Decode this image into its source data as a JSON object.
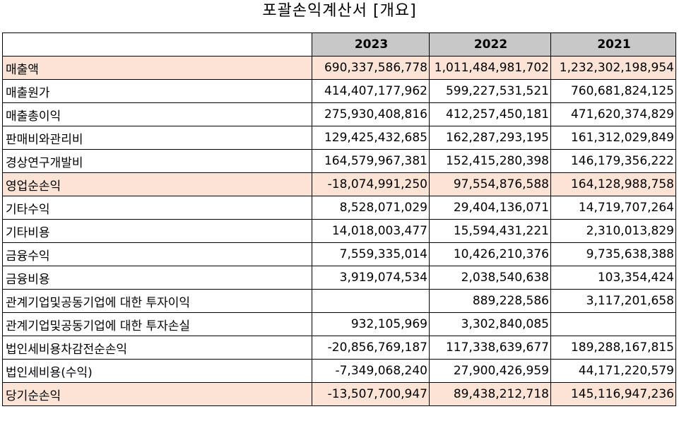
{
  "title": "포괄손익계산서 [개요]",
  "table": {
    "columns": [
      "2023",
      "2022",
      "2021"
    ],
    "rows": [
      {
        "label": "매출액",
        "values": [
          "690,337,586,778",
          "1,011,484,981,702",
          "1,232,302,198,954"
        ],
        "highlight": true
      },
      {
        "label": "매출원가",
        "values": [
          "414,407,177,962",
          "599,227,531,521",
          "760,681,824,125"
        ],
        "highlight": false
      },
      {
        "label": "매출총이익",
        "values": [
          "275,930,408,816",
          "412,257,450,181",
          "471,620,374,829"
        ],
        "highlight": false
      },
      {
        "label": "판매비와관리비",
        "values": [
          "129,425,432,685",
          "162,287,293,195",
          "161,312,029,849"
        ],
        "highlight": false
      },
      {
        "label": "경상연구개발비",
        "values": [
          "164,579,967,381",
          "152,415,280,398",
          "146,179,356,222"
        ],
        "highlight": false
      },
      {
        "label": "영업순손익",
        "values": [
          "-18,074,991,250",
          "97,554,876,588",
          "164,128,988,758"
        ],
        "highlight": true
      },
      {
        "label": "기타수익",
        "values": [
          "8,528,071,029",
          "29,404,136,071",
          "14,719,707,264"
        ],
        "highlight": false
      },
      {
        "label": "기타비용",
        "values": [
          "14,018,003,477",
          "15,594,431,221",
          "2,310,013,829"
        ],
        "highlight": false
      },
      {
        "label": "금융수익",
        "values": [
          "7,559,335,014",
          "10,426,210,376",
          "9,735,638,388"
        ],
        "highlight": false
      },
      {
        "label": "금융비용",
        "values": [
          "3,919,074,534",
          "2,038,540,638",
          "103,354,424"
        ],
        "highlight": false
      },
      {
        "label": "관계기업및공동기업에 대한 투자이익",
        "values": [
          "",
          "889,228,586",
          "3,117,201,658"
        ],
        "highlight": false
      },
      {
        "label": "관계기업및공동기업에 대한 투자손실",
        "values": [
          "932,105,969",
          "3,302,840,085",
          ""
        ],
        "highlight": false
      },
      {
        "label": "법인세비용차감전순손익",
        "values": [
          "-20,856,769,187",
          "117,338,639,677",
          "189,288,167,815"
        ],
        "highlight": false
      },
      {
        "label": "법인세비용(수익)",
        "values": [
          "-7,349,068,240",
          "27,900,426,959",
          "44,171,220,579"
        ],
        "highlight": false
      },
      {
        "label": "당기순손익",
        "values": [
          "-13,507,700,947",
          "89,438,212,718",
          "145,116,947,236"
        ],
        "highlight": true
      }
    ]
  },
  "colors": {
    "header_bg": "#c8c8c8",
    "highlight_bg": "#fbe3d6",
    "border": "#000000"
  }
}
